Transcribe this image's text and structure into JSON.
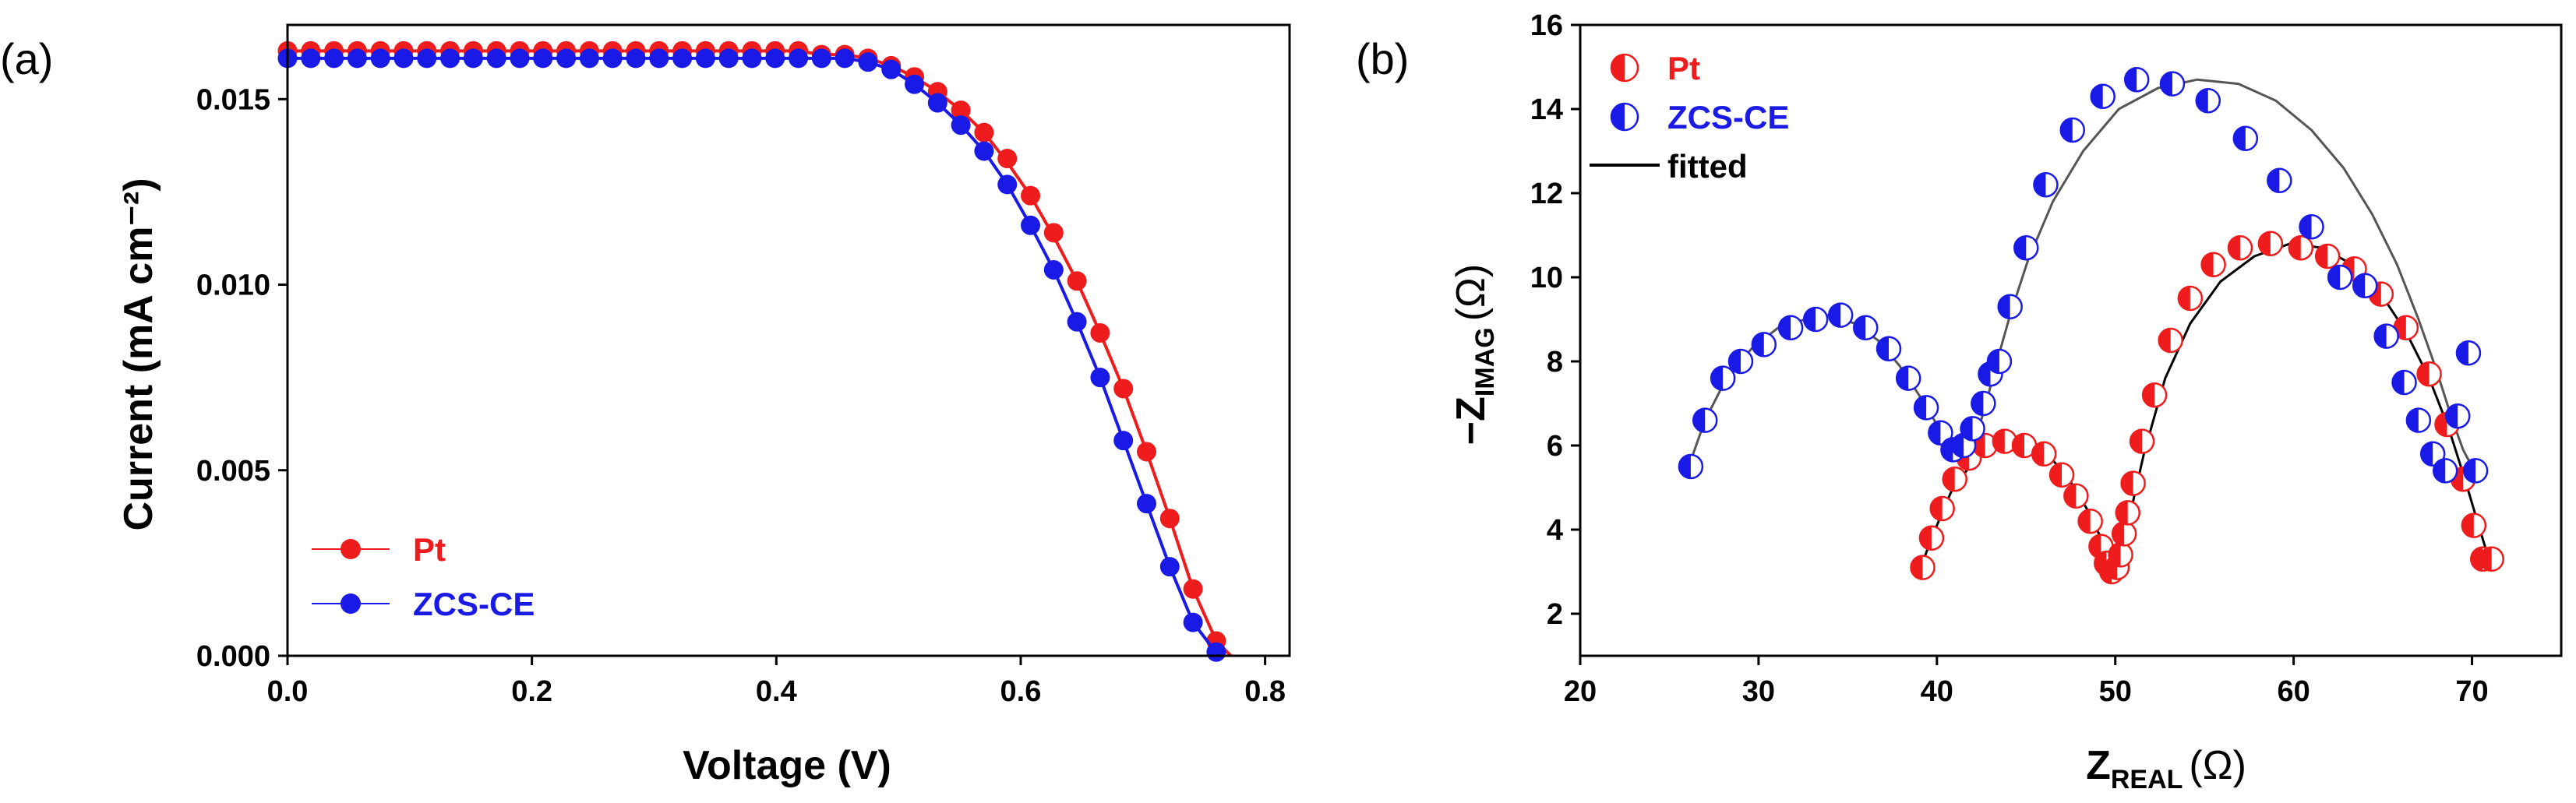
{
  "figure": {
    "panel_a_label": "(a)",
    "panel_b_label": "(b)"
  },
  "colors": {
    "pt": "#ee1c1c",
    "zcs": "#1a1ae6",
    "fitted": "#000000",
    "axis": "#000000"
  },
  "chart_data": [
    {
      "type": "line",
      "panel": "(a)",
      "title": "",
      "xlabel": "Voltage (V)",
      "ylabel": "Current (mA cm⁻²)",
      "xlim": [
        0.0,
        0.82
      ],
      "ylim": [
        0.0,
        0.017
      ],
      "xticks": [
        0.0,
        0.2,
        0.4,
        0.6,
        0.8
      ],
      "xtick_labels": [
        "0.0",
        "0.2",
        "0.4",
        "0.6",
        "0.8"
      ],
      "yticks": [
        0.0,
        0.005,
        0.01,
        0.015
      ],
      "ytick_labels": [
        "0.000",
        "0.005",
        "0.010",
        "0.015"
      ],
      "legend_position": "bottom-left",
      "series": [
        {
          "name": "Pt",
          "color": "#ee1c1c",
          "marker": "filled-circle",
          "x": [
            0.0,
            0.019,
            0.038,
            0.057,
            0.076,
            0.095,
            0.114,
            0.133,
            0.152,
            0.171,
            0.19,
            0.209,
            0.228,
            0.247,
            0.266,
            0.285,
            0.304,
            0.323,
            0.342,
            0.361,
            0.38,
            0.399,
            0.418,
            0.437,
            0.456,
            0.475,
            0.494,
            0.513,
            0.532,
            0.551,
            0.57,
            0.589,
            0.608,
            0.627,
            0.646,
            0.665,
            0.684,
            0.703,
            0.722,
            0.741,
            0.76,
            0.772
          ],
          "y": [
            0.0163,
            0.0163,
            0.0163,
            0.0163,
            0.0163,
            0.0163,
            0.0163,
            0.0163,
            0.0163,
            0.0163,
            0.0163,
            0.0163,
            0.0163,
            0.0163,
            0.0163,
            0.0163,
            0.0163,
            0.0163,
            0.0163,
            0.0163,
            0.0163,
            0.0163,
            0.0163,
            0.0162,
            0.0162,
            0.0161,
            0.0159,
            0.0156,
            0.0152,
            0.0147,
            0.0141,
            0.0133,
            0.0124,
            0.0113,
            0.0101,
            0.0087,
            0.0072,
            0.0055,
            0.0037,
            0.0018,
            0.0004,
            0.0
          ],
          "marker_x": [
            0.0,
            0.019,
            0.038,
            0.057,
            0.076,
            0.095,
            0.114,
            0.133,
            0.152,
            0.171,
            0.19,
            0.209,
            0.228,
            0.247,
            0.266,
            0.285,
            0.304,
            0.323,
            0.342,
            0.361,
            0.38,
            0.399,
            0.418,
            0.437,
            0.456,
            0.475,
            0.494,
            0.513,
            0.532,
            0.551,
            0.57,
            0.589,
            0.608,
            0.627,
            0.646,
            0.665,
            0.684,
            0.703,
            0.722,
            0.741,
            0.76
          ],
          "marker_y": [
            0.0163,
            0.0163,
            0.0163,
            0.0163,
            0.0163,
            0.0163,
            0.0163,
            0.0163,
            0.0163,
            0.0163,
            0.0163,
            0.0163,
            0.0163,
            0.0163,
            0.0163,
            0.0163,
            0.0163,
            0.0163,
            0.0163,
            0.0163,
            0.0163,
            0.0163,
            0.0163,
            0.0162,
            0.0162,
            0.0161,
            0.0159,
            0.0156,
            0.0152,
            0.0147,
            0.0141,
            0.0134,
            0.0124,
            0.0114,
            0.0101,
            0.0087,
            0.0072,
            0.0055,
            0.0037,
            0.0018,
            0.0004
          ]
        },
        {
          "name": "ZCS-CE",
          "color": "#1a1ae6",
          "marker": "filled-circle",
          "x": [
            0.0,
            0.019,
            0.038,
            0.057,
            0.076,
            0.095,
            0.114,
            0.133,
            0.152,
            0.171,
            0.19,
            0.209,
            0.228,
            0.247,
            0.266,
            0.285,
            0.304,
            0.323,
            0.342,
            0.361,
            0.38,
            0.399,
            0.418,
            0.437,
            0.456,
            0.475,
            0.494,
            0.513,
            0.532,
            0.551,
            0.57,
            0.589,
            0.608,
            0.627,
            0.646,
            0.665,
            0.684,
            0.703,
            0.722,
            0.741,
            0.762
          ],
          "y": [
            0.0161,
            0.0161,
            0.0161,
            0.0161,
            0.0161,
            0.0161,
            0.0161,
            0.0161,
            0.0161,
            0.0161,
            0.0161,
            0.0161,
            0.0161,
            0.0161,
            0.0161,
            0.0161,
            0.0161,
            0.0161,
            0.0161,
            0.0161,
            0.0161,
            0.0161,
            0.0161,
            0.0161,
            0.0161,
            0.016,
            0.0158,
            0.0154,
            0.0149,
            0.0143,
            0.0136,
            0.0127,
            0.0116,
            0.0104,
            0.009,
            0.0075,
            0.0058,
            0.0041,
            0.0024,
            0.0009,
            0.0
          ],
          "marker_x": [
            0.0,
            0.019,
            0.038,
            0.057,
            0.076,
            0.095,
            0.114,
            0.133,
            0.152,
            0.171,
            0.19,
            0.209,
            0.228,
            0.247,
            0.266,
            0.285,
            0.304,
            0.323,
            0.342,
            0.361,
            0.38,
            0.399,
            0.418,
            0.437,
            0.456,
            0.475,
            0.494,
            0.513,
            0.532,
            0.551,
            0.57,
            0.589,
            0.608,
            0.627,
            0.646,
            0.665,
            0.684,
            0.703,
            0.722,
            0.741,
            0.76
          ],
          "marker_y": [
            0.0161,
            0.0161,
            0.0161,
            0.0161,
            0.0161,
            0.0161,
            0.0161,
            0.0161,
            0.0161,
            0.0161,
            0.0161,
            0.0161,
            0.0161,
            0.0161,
            0.0161,
            0.0161,
            0.0161,
            0.0161,
            0.0161,
            0.0161,
            0.0161,
            0.0161,
            0.0161,
            0.0161,
            0.0161,
            0.016,
            0.0158,
            0.0154,
            0.0149,
            0.0143,
            0.0136,
            0.0127,
            0.0116,
            0.0104,
            0.009,
            0.0075,
            0.0058,
            0.0041,
            0.0024,
            0.0009,
            0.0001
          ]
        }
      ],
      "legend": [
        {
          "label": "Pt",
          "series": 0
        },
        {
          "label": "ZCS-CE",
          "series": 1
        }
      ]
    },
    {
      "type": "scatter",
      "panel": "(b)",
      "title": "",
      "xlabel_main": "Z",
      "xlabel_sub": "REAL",
      "xlabel_unit": "(Ω)",
      "ylabel_main": "−Z",
      "ylabel_sub": "IMAG",
      "ylabel_unit": "(Ω)",
      "xlim": [
        20,
        75
      ],
      "ylim": [
        1,
        16
      ],
      "xticks": [
        20,
        30,
        40,
        50,
        60,
        70
      ],
      "xtick_labels": [
        "20",
        "30",
        "40",
        "50",
        "60",
        "70"
      ],
      "yticks": [
        2,
        4,
        6,
        8,
        10,
        12,
        14,
        16
      ],
      "ytick_labels": [
        "2",
        "4",
        "6",
        "8",
        "10",
        "12",
        "14",
        "16"
      ],
      "legend_position": "top-left",
      "series": [
        {
          "name": "Pt",
          "color": "#ee1c1c",
          "marker": "half-filled-circle-left",
          "x": [
            39.2,
            39.7,
            40.3,
            41.0,
            41.8,
            42.7,
            43.8,
            44.9,
            46.0,
            47.0,
            47.8,
            48.6,
            49.2,
            49.5,
            49.8,
            50.1,
            50.3,
            50.5,
            50.7,
            51.0,
            51.5,
            52.2,
            53.1,
            54.2,
            55.5,
            57.0,
            58.7,
            60.4,
            61.9,
            63.4,
            64.9,
            66.3,
            67.6,
            68.6,
            69.5,
            70.1,
            70.6,
            71.1
          ],
          "y": [
            3.1,
            3.8,
            4.5,
            5.2,
            5.7,
            6.0,
            6.1,
            6.0,
            5.8,
            5.3,
            4.8,
            4.2,
            3.6,
            3.2,
            3.0,
            3.1,
            3.4,
            3.9,
            4.4,
            5.1,
            6.1,
            7.2,
            8.5,
            9.5,
            10.3,
            10.7,
            10.8,
            10.7,
            10.5,
            10.2,
            9.6,
            8.8,
            7.7,
            6.5,
            5.2,
            4.1,
            3.3,
            3.3
          ]
        },
        {
          "name": "ZCS-CE",
          "color": "#1a1ae6",
          "marker": "half-filled-circle-left",
          "x": [
            26.2,
            27.0,
            28.0,
            29.0,
            30.3,
            31.8,
            33.2,
            34.6,
            36.0,
            37.3,
            38.4,
            39.4,
            40.2,
            40.9,
            41.5,
            42.0,
            42.6,
            43.0,
            43.5,
            44.1,
            45.0,
            46.1,
            47.6,
            49.3,
            51.2,
            53.2,
            55.2,
            57.3,
            59.2,
            61.0,
            62.6,
            64.0,
            65.2,
            66.2,
            67.0,
            67.8,
            68.5,
            69.2,
            69.8,
            70.2
          ],
          "y": [
            5.5,
            6.6,
            7.6,
            8.0,
            8.4,
            8.8,
            9.0,
            9.1,
            8.8,
            8.3,
            7.6,
            6.9,
            6.3,
            5.9,
            6.0,
            6.4,
            7.0,
            7.7,
            8.0,
            9.3,
            10.7,
            12.2,
            13.5,
            14.3,
            14.7,
            14.6,
            14.2,
            13.3,
            12.3,
            11.2,
            10.0,
            9.8,
            8.6,
            7.5,
            6.6,
            5.8,
            5.4,
            6.7,
            8.2,
            5.4
          ]
        }
      ],
      "fit_pt": {
        "x": [
          39.0,
          39.8,
          40.8,
          42.0,
          43.4,
          44.8,
          46.2,
          47.4,
          48.4,
          49.2,
          49.7,
          50.0,
          50.3,
          50.8,
          51.6,
          52.8,
          54.2,
          55.9,
          57.8,
          59.8,
          61.6,
          63.3,
          64.9,
          66.3,
          67.6,
          68.7,
          69.6,
          70.3,
          70.8,
          71.2
        ],
        "y": [
          3.0,
          3.9,
          4.9,
          5.6,
          6.0,
          6.1,
          5.8,
          5.2,
          4.5,
          3.8,
          3.3,
          3.0,
          3.3,
          4.3,
          5.8,
          7.6,
          8.9,
          9.9,
          10.5,
          10.8,
          10.7,
          10.3,
          9.6,
          8.7,
          7.6,
          6.4,
          5.2,
          4.2,
          3.5,
          3.1
        ]
      },
      "fit_zcs": {
        "x": [
          26.0,
          27.0,
          28.2,
          29.6,
          31.1,
          32.6,
          34.0,
          35.4,
          36.7,
          37.9,
          39.0,
          40.0,
          40.8,
          41.5,
          42.1,
          42.7,
          43.3,
          44.1,
          45.1,
          46.5,
          48.2,
          50.2,
          52.4,
          54.6,
          56.9,
          59.0,
          61.0,
          62.8,
          64.4,
          65.8,
          67.0,
          68.0,
          68.9,
          69.5,
          70.0,
          70.3
        ],
        "y": [
          5.4,
          6.6,
          7.6,
          8.3,
          8.8,
          9.0,
          9.1,
          8.9,
          8.5,
          7.9,
          7.2,
          6.5,
          6.0,
          5.8,
          6.1,
          6.9,
          7.9,
          9.1,
          10.4,
          11.8,
          13.0,
          14.0,
          14.5,
          14.7,
          14.6,
          14.2,
          13.5,
          12.6,
          11.5,
          10.3,
          9.0,
          7.8,
          6.6,
          5.9,
          5.5,
          5.4
        ]
      },
      "legend": [
        {
          "label": "Pt",
          "kind": "marker",
          "color": "#ee1c1c"
        },
        {
          "label": "ZCS-CE",
          "kind": "marker",
          "color": "#1a1ae6"
        },
        {
          "label": "fitted",
          "kind": "line",
          "color": "#000000"
        }
      ]
    }
  ]
}
